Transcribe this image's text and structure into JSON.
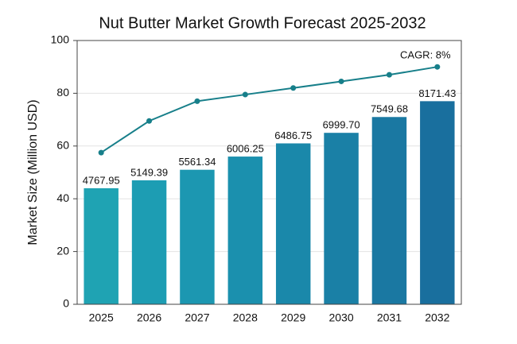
{
  "chart_data": {
    "type": "bar",
    "title": "Nut Butter Market Growth Forecast 2025-2032",
    "ylabel": "Market Size (Million USD)",
    "categories": [
      "2025",
      "2026",
      "2027",
      "2028",
      "2029",
      "2030",
      "2031",
      "2032"
    ],
    "series": [
      {
        "type": "bar",
        "values": [
          44,
          47,
          51,
          56,
          61,
          65,
          71,
          77
        ],
        "colors": [
          "#1fa3b3",
          "#1d9db3",
          "#1c97b1",
          "#1b90ae",
          "#1a88aa",
          "#1a80a6",
          "#1a78a2",
          "#196f9e"
        ],
        "bar_labels": [
          "4767.95",
          "5149.39",
          "5561.34",
          "6006.25",
          "6486.75",
          "6999.70",
          "7549.68",
          "8171.43"
        ]
      },
      {
        "type": "line",
        "color": "#177f8a",
        "values": [
          57.5,
          69.5,
          77,
          79.5,
          82,
          84.5,
          87,
          90
        ]
      }
    ],
    "annotation": "CAGR: 8%",
    "ylim": [
      0,
      100
    ],
    "yticks": [
      0,
      20,
      40,
      60,
      80,
      100
    ],
    "grid": true
  }
}
